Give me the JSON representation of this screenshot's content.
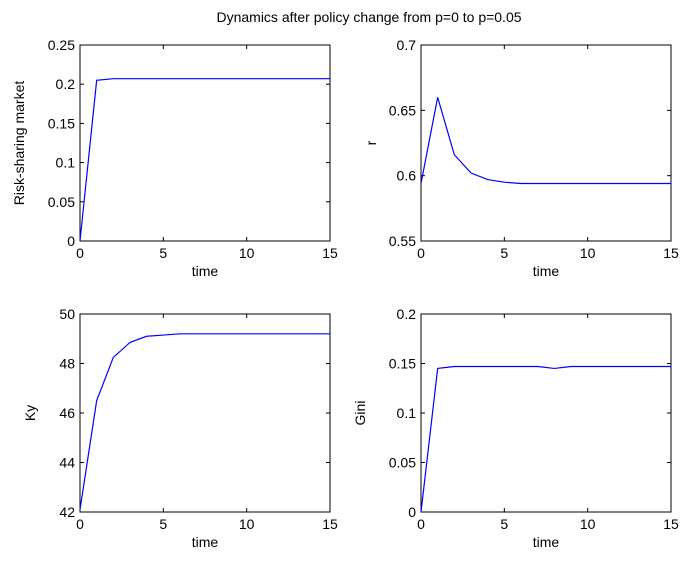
{
  "figure_title": "Dynamics after policy change from p=0 to p=0.05",
  "colors": {
    "line": "#0000ff",
    "axis": "#000000",
    "background": "#ffffff"
  },
  "chart_data": [
    {
      "type": "line",
      "xlabel": "time",
      "ylabel": "Risk-sharing market",
      "xlim": [
        0,
        15
      ],
      "ylim": [
        0,
        0.25
      ],
      "xticks": [
        0,
        5,
        10,
        15
      ],
      "yticks": [
        0,
        0.05,
        0.1,
        0.15,
        0.2,
        0.25
      ],
      "xtick_labels": [
        "0",
        "5",
        "10",
        "15"
      ],
      "ytick_labels": [
        "0",
        "0.05",
        "0.1",
        "0.15",
        "0.2",
        "0.25"
      ],
      "series": [
        {
          "x": [
            0,
            1,
            2,
            3,
            4,
            5,
            6,
            7,
            8,
            9,
            10,
            11,
            12,
            13,
            14,
            15
          ],
          "y": [
            0,
            0.205,
            0.207,
            0.207,
            0.207,
            0.207,
            0.207,
            0.207,
            0.207,
            0.207,
            0.207,
            0.207,
            0.207,
            0.207,
            0.207,
            0.207
          ]
        }
      ]
    },
    {
      "type": "line",
      "xlabel": "time",
      "ylabel": "r",
      "xlim": [
        0,
        15
      ],
      "ylim": [
        0.55,
        0.7
      ],
      "xticks": [
        0,
        5,
        10,
        15
      ],
      "yticks": [
        0.55,
        0.6,
        0.65,
        0.7
      ],
      "xtick_labels": [
        "0",
        "5",
        "10",
        "15"
      ],
      "ytick_labels": [
        "0.55",
        "0.6",
        "0.65",
        "0.7"
      ],
      "series": [
        {
          "x": [
            0,
            1,
            2,
            3,
            4,
            5,
            6,
            7,
            8,
            9,
            10,
            11,
            12,
            13,
            14,
            15
          ],
          "y": [
            0.594,
            0.66,
            0.616,
            0.602,
            0.597,
            0.595,
            0.594,
            0.594,
            0.594,
            0.594,
            0.594,
            0.594,
            0.594,
            0.594,
            0.594,
            0.594
          ]
        }
      ]
    },
    {
      "type": "line",
      "xlabel": "time",
      "ylabel": "Ky",
      "xlim": [
        0,
        15
      ],
      "ylim": [
        42,
        50
      ],
      "xticks": [
        0,
        5,
        10,
        15
      ],
      "yticks": [
        42,
        44,
        46,
        48,
        50
      ],
      "xtick_labels": [
        "0",
        "5",
        "10",
        "15"
      ],
      "ytick_labels": [
        "42",
        "44",
        "46",
        "48",
        "50"
      ],
      "series": [
        {
          "x": [
            0,
            1,
            2,
            3,
            4,
            5,
            6,
            7,
            8,
            9,
            10,
            11,
            12,
            13,
            14,
            15
          ],
          "y": [
            42.1,
            46.5,
            48.25,
            48.85,
            49.1,
            49.15,
            49.2,
            49.2,
            49.2,
            49.2,
            49.2,
            49.2,
            49.2,
            49.2,
            49.2,
            49.2
          ]
        }
      ]
    },
    {
      "type": "line",
      "xlabel": "time",
      "ylabel": "Gini",
      "xlim": [
        0,
        15
      ],
      "ylim": [
        0,
        0.2
      ],
      "xticks": [
        0,
        5,
        10,
        15
      ],
      "yticks": [
        0,
        0.05,
        0.1,
        0.15,
        0.2
      ],
      "xtick_labels": [
        "0",
        "5",
        "10",
        "15"
      ],
      "ytick_labels": [
        "0",
        "0.05",
        "0.1",
        "0.15",
        "0.2"
      ],
      "series": [
        {
          "x": [
            0,
            1,
            2,
            3,
            4,
            5,
            6,
            7,
            8,
            9,
            10,
            11,
            12,
            13,
            14,
            15
          ],
          "y": [
            0,
            0.145,
            0.147,
            0.147,
            0.147,
            0.147,
            0.147,
            0.147,
            0.145,
            0.147,
            0.147,
            0.147,
            0.147,
            0.147,
            0.147,
            0.147
          ]
        }
      ]
    }
  ]
}
